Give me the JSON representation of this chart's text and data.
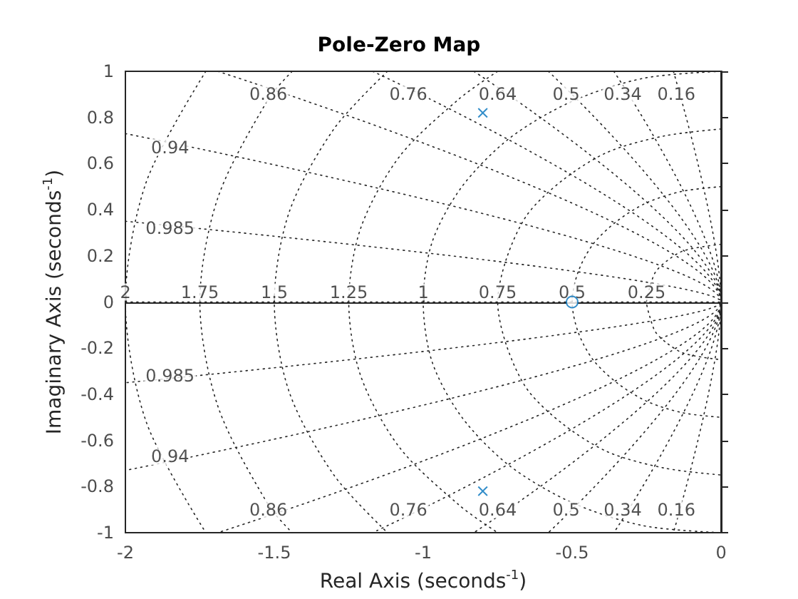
{
  "chart_data": {
    "type": "scatter",
    "title": "Pole-Zero Map",
    "xlabel": "Real Axis (seconds$^{-1}$)",
    "ylabel": "Imaginary Axis (seconds$^{-1}$)",
    "xlim": [
      -2,
      0
    ],
    "xticks": [
      -2,
      -1.5,
      -1,
      -0.5,
      0
    ],
    "ylim": [
      -1,
      1
    ],
    "yticks": [
      -1,
      -0.8,
      -0.6,
      -0.4,
      -0.2,
      0,
      0.2,
      0.4,
      0.6,
      0.8,
      1
    ],
    "series": [
      {
        "type": "line",
        "color": "#262626",
        "line_style": "dotted",
        "marker": "none",
        "x": [
          0,
          -0.06,
          -0.13,
          -0.18,
          -0.22,
          -0.24,
          -0.25,
          -0.24,
          -0.22,
          -0.18,
          -0.13,
          -0.06,
          0,
          null,
          0,
          -0.13,
          -0.25,
          -0.35,
          -0.43,
          -0.48,
          -0.5,
          -0.48,
          -0.43,
          -0.35,
          -0.25,
          -0.13,
          0,
          null,
          0,
          -0.19,
          -0.38,
          -0.53,
          -0.65,
          -0.72,
          -0.75,
          -0.72,
          -0.65,
          -0.53,
          -0.38,
          -0.19,
          0,
          null,
          0,
          -0.26,
          -0.5,
          -0.71,
          -0.87,
          -0.97,
          -1,
          -0.97,
          -0.87,
          -0.71,
          -0.5,
          -0.26,
          0,
          null,
          -0.75,
          -0.88,
          -1.08,
          -1.21,
          -1.25,
          -1.21,
          -1.08,
          -0.88,
          -0.75,
          null,
          -1.12,
          -1.3,
          -1.45,
          -1.5,
          -1.45,
          -1.3,
          -1.12,
          null,
          -1.44,
          -1.52,
          -1.69,
          -1.75,
          -1.69,
          -1.52,
          -1.44,
          null,
          -1.73,
          -1.93,
          -2,
          -1.93,
          -1.73
        ],
        "values": [
          0.25,
          0.24,
          0.22,
          0.18,
          0.13,
          0.06,
          0,
          -0.06,
          -0.13,
          -0.18,
          -0.22,
          -0.24,
          -0.25,
          null,
          0.5,
          0.48,
          0.43,
          0.35,
          0.25,
          0.13,
          0,
          -0.13,
          -0.25,
          -0.35,
          -0.43,
          -0.48,
          -0.5,
          null,
          0.75,
          0.72,
          0.65,
          0.53,
          0.38,
          0.19,
          0,
          -0.19,
          -0.38,
          -0.53,
          -0.65,
          -0.72,
          -0.75,
          null,
          1,
          0.97,
          0.87,
          0.71,
          0.5,
          0.26,
          0,
          -0.26,
          -0.5,
          -0.71,
          -0.87,
          -0.97,
          -1,
          null,
          1,
          0.88,
          0.63,
          0.32,
          0,
          -0.32,
          -0.63,
          -0.88,
          -1,
          null,
          1,
          0.75,
          0.39,
          0,
          -0.39,
          -0.75,
          -1,
          null,
          1,
          0.88,
          0.45,
          0,
          -0.45,
          -0.88,
          -1,
          null,
          1,
          0.52,
          0,
          -0.52,
          -1
        ]
      },
      {
        "type": "line",
        "color": "#262626",
        "line_style": "dotted",
        "marker": "none",
        "x": [
          -0.16,
          0,
          -0.16,
          null,
          -0.36,
          0,
          -0.36,
          null,
          -0.58,
          0,
          -0.58,
          null,
          -0.83,
          0,
          -0.83,
          null,
          -1.17,
          0,
          -1.17,
          null,
          -1.69,
          0,
          -1.69,
          null,
          -2,
          0,
          -2,
          null,
          -2,
          0,
          -2,
          null,
          -2,
          0
        ],
        "values": [
          1,
          0,
          -1,
          null,
          1,
          0,
          -1,
          null,
          1,
          0,
          -1,
          null,
          1,
          0,
          -1,
          null,
          1,
          0,
          -1,
          null,
          1,
          0,
          -1,
          null,
          0.73,
          0,
          -0.73,
          null,
          0.35,
          0,
          -0.35,
          null,
          0,
          0
        ]
      },
      {
        "color": "#0072bd",
        "marker": "cross",
        "x": [
          -0.8,
          -0.8
        ],
        "values": [
          0.82,
          -0.82
        ]
      },
      {
        "color": "#0072bd",
        "marker": "circle",
        "x": [
          -0.5
        ],
        "values": [
          0
        ]
      }
    ],
    "annotations": [
      {
        "text": "0.86",
        "x": -1.52,
        "y": 0.9
      },
      {
        "text": "0.76",
        "x": -1.05,
        "y": 0.9
      },
      {
        "text": "0.64",
        "x": -0.75,
        "y": 0.9
      },
      {
        "text": "0.5",
        "x": -0.52,
        "y": 0.9
      },
      {
        "text": "0.34",
        "x": -0.33,
        "y": 0.9
      },
      {
        "text": "0.16",
        "x": -0.15,
        "y": 0.9
      },
      {
        "text": "0.94",
        "x": -1.85,
        "y": 0.67
      },
      {
        "text": "0.985",
        "x": -1.85,
        "y": 0.32
      },
      {
        "text": "0.86",
        "x": -1.52,
        "y": -0.9
      },
      {
        "text": "0.76",
        "x": -1.05,
        "y": -0.9
      },
      {
        "text": "0.64",
        "x": -0.75,
        "y": -0.9
      },
      {
        "text": "0.5",
        "x": -0.52,
        "y": -0.9
      },
      {
        "text": "0.34",
        "x": -0.33,
        "y": -0.9
      },
      {
        "text": "0.16",
        "x": -0.15,
        "y": -0.9
      },
      {
        "text": "0.94",
        "x": -1.85,
        "y": -0.67
      },
      {
        "text": "0.985",
        "x": -1.85,
        "y": -0.32
      },
      {
        "text": "2",
        "x": -2,
        "y": 0
      },
      {
        "text": "1.75",
        "x": -1.75,
        "y": 0
      },
      {
        "text": "1.5",
        "x": -1.5,
        "y": 0
      },
      {
        "text": "1.25",
        "x": -1.25,
        "y": 0
      },
      {
        "text": "1",
        "x": -1,
        "y": 0
      },
      {
        "text": "0.75",
        "x": -0.75,
        "y": 0
      },
      {
        "text": "0.5",
        "x": -0.5,
        "y": 0
      },
      {
        "text": "0.25",
        "x": -0.25,
        "y": 0
      }
    ]
  }
}
